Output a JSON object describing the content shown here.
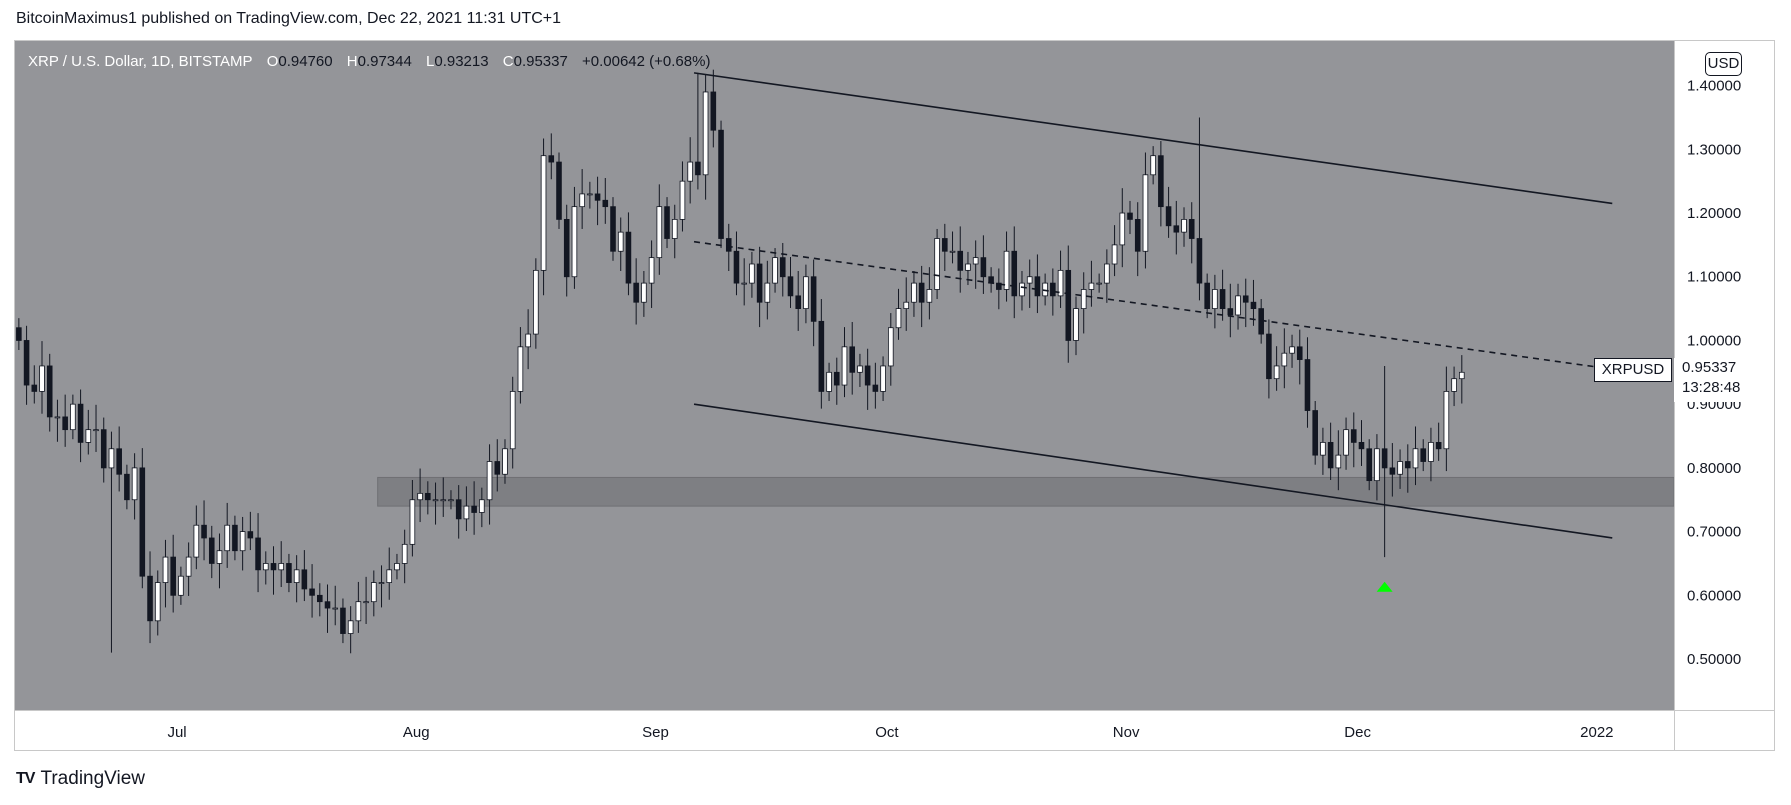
{
  "header": {
    "published_text": "BitcoinMaximus1 published on TradingView.com, Dec 22, 2021 11:31 UTC+1"
  },
  "legend": {
    "symbol": "XRP / U.S. Dollar, 1D, BITSTAMP",
    "open_label": "O",
    "open": "0.94760",
    "high_label": "H",
    "high": "0.97344",
    "low_label": "L",
    "low": "0.93213",
    "close_label": "C",
    "close": "0.95337",
    "change": "+0.00642 (+0.68%)"
  },
  "currency_button": "USD",
  "price_tag": {
    "symbol": "XRPUSD",
    "price": "0.95337",
    "countdown": "13:28:48"
  },
  "footer": {
    "logo_mark": "TV",
    "brand": "TradingView"
  },
  "colors": {
    "plot_background": "#949599",
    "up_candle": "#ffffff",
    "down_candle": "#131722",
    "support_zone": "#7e7f83",
    "arrow": "#00ff00"
  },
  "chart_data": {
    "type": "candlestick",
    "title": "XRP / U.S. Dollar, 1D, BITSTAMP",
    "x_range": [
      "2021-06-10",
      "2022-01-11"
    ],
    "ylim": [
      0.42,
      1.47
    ],
    "y_ticks": [
      {
        "value": 0.5,
        "label": "0.50000"
      },
      {
        "value": 0.6,
        "label": "0.60000"
      },
      {
        "value": 0.7,
        "label": "0.70000"
      },
      {
        "value": 0.8,
        "label": "0.80000"
      },
      {
        "value": 0.9,
        "label": "0.90000"
      },
      {
        "value": 1.0,
        "label": "1.00000"
      },
      {
        "value": 1.1,
        "label": "1.10000"
      },
      {
        "value": 1.2,
        "label": "1.20000"
      },
      {
        "value": 1.3,
        "label": "1.30000"
      },
      {
        "value": 1.4,
        "label": "1.40000"
      }
    ],
    "x_ticks": [
      {
        "date": "2021-07-01",
        "label": "Jul"
      },
      {
        "date": "2021-08-01",
        "label": "Aug"
      },
      {
        "date": "2021-09-01",
        "label": "Sep"
      },
      {
        "date": "2021-10-01",
        "label": "Oct"
      },
      {
        "date": "2021-11-01",
        "label": "Nov"
      },
      {
        "date": "2021-12-01",
        "label": "Dec"
      },
      {
        "date": "2022-01-01",
        "label": "2022"
      }
    ],
    "grid": false,
    "candles": {
      "start_date": "2021-06-10",
      "close": [
        1.0,
        0.93,
        0.92,
        0.96,
        0.88,
        0.88,
        0.86,
        0.9,
        0.84,
        0.86,
        0.86,
        0.8,
        0.83,
        0.79,
        0.75,
        0.8,
        0.63,
        0.56,
        0.62,
        0.66,
        0.6,
        0.63,
        0.66,
        0.71,
        0.69,
        0.65,
        0.67,
        0.71,
        0.67,
        0.7,
        0.69,
        0.64,
        0.65,
        0.64,
        0.65,
        0.62,
        0.64,
        0.61,
        0.6,
        0.59,
        0.58,
        0.58,
        0.54,
        0.56,
        0.59,
        0.59,
        0.62,
        0.62,
        0.64,
        0.65,
        0.68,
        0.75,
        0.76,
        0.75,
        0.75,
        0.75,
        0.75,
        0.72,
        0.74,
        0.73,
        0.75,
        0.81,
        0.79,
        0.83,
        0.92,
        0.99,
        1.01,
        1.11,
        1.29,
        1.28,
        1.19,
        1.1,
        1.21,
        1.23,
        1.23,
        1.22,
        1.21,
        1.14,
        1.17,
        1.09,
        1.06,
        1.09,
        1.13,
        1.21,
        1.16,
        1.19,
        1.25,
        1.28,
        1.26,
        1.39,
        1.33,
        1.16,
        1.14,
        1.09,
        1.09,
        1.12,
        1.06,
        1.09,
        1.13,
        1.1,
        1.07,
        1.05,
        1.1,
        1.03,
        0.92,
        0.95,
        0.93,
        0.99,
        0.95,
        0.96,
        0.93,
        0.92,
        0.96,
        1.02,
        1.05,
        1.06,
        1.09,
        1.06,
        1.08,
        1.16,
        1.14,
        1.14,
        1.11,
        1.12,
        1.13,
        1.1,
        1.09,
        1.08,
        1.14,
        1.07,
        1.09,
        1.1,
        1.07,
        1.09,
        1.07,
        1.11,
        1.0,
        1.05,
        1.08,
        1.09,
        1.09,
        1.12,
        1.15,
        1.2,
        1.19,
        1.14,
        1.26,
        1.29,
        1.21,
        1.18,
        1.17,
        1.19,
        1.16,
        1.09,
        1.05,
        1.08,
        1.05,
        1.04,
        1.07,
        1.06,
        1.05,
        1.01,
        0.94,
        0.96,
        0.98,
        0.99,
        0.97,
        0.89,
        0.82,
        0.84,
        0.8,
        0.82,
        0.86,
        0.84,
        0.83,
        0.78,
        0.83,
        0.8,
        0.79,
        0.81,
        0.8,
        0.83,
        0.81,
        0.84,
        0.83,
        0.92,
        0.94,
        0.95
      ],
      "note_gaps": "open = previous close; wicks extend beyond bodies"
    },
    "special_candles": [
      {
        "date": "2021-12-04",
        "low": 0.66,
        "high": 0.96
      },
      {
        "date": "2021-09-06",
        "high": 1.42
      },
      {
        "date": "2021-11-10",
        "high": 1.35
      },
      {
        "date": "2021-06-22",
        "low": 0.51
      }
    ],
    "annotations": {
      "upper_channel": {
        "from": {
          "date": "2021-09-06",
          "value": 1.42
        },
        "to": {
          "date": "2022-01-03",
          "value": 1.215
        }
      },
      "lower_channel": {
        "from": {
          "date": "2021-09-06",
          "value": 0.9
        },
        "to": {
          "date": "2022-01-03",
          "value": 0.69
        }
      },
      "mid_dashed": {
        "from": {
          "date": "2021-09-06",
          "value": 1.155
        },
        "to": {
          "date": "2022-01-03",
          "value": 0.955
        }
      },
      "support_zone": {
        "from_date": "2021-07-27",
        "to_date": "2022-01-11",
        "low": 0.74,
        "high": 0.785
      },
      "arrow": {
        "date": "2021-12-04",
        "value": 0.615
      }
    },
    "last_price": 0.95337
  }
}
